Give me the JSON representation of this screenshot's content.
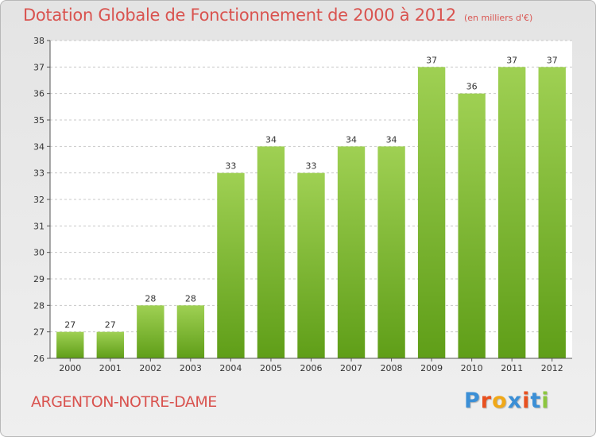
{
  "title": "Dotation Globale de Fonctionnement de 2000 à 2012",
  "unit": "(en milliers d'€)",
  "commune": "ARGENTON-NOTRE-DAME",
  "logo": {
    "letters": [
      "P",
      "r",
      "o",
      "x",
      "i",
      "t",
      "i"
    ],
    "colors": [
      "#3b8fd6",
      "#e8501f",
      "#f0a818",
      "#3b8fd6",
      "#e8501f",
      "#3b8fd6",
      "#8cc63f"
    ]
  },
  "chart_data": {
    "type": "bar",
    "categories": [
      "2000",
      "2001",
      "2002",
      "2003",
      "2004",
      "2005",
      "2006",
      "2007",
      "2008",
      "2009",
      "2010",
      "2011",
      "2012"
    ],
    "values": [
      27,
      27,
      28,
      28,
      33,
      34,
      33,
      34,
      34,
      37,
      36,
      37,
      37
    ],
    "title": "Dotation Globale de Fonctionnement de 2000 à 2012",
    "subtitle": "(en milliers d'€)",
    "xlabel": "",
    "ylabel": "",
    "ylim": [
      26,
      38
    ],
    "yticks": [
      26,
      27,
      28,
      29,
      30,
      31,
      32,
      33,
      34,
      35,
      36,
      37,
      38
    ],
    "grid": true,
    "legend": "none",
    "bar_color_top": "#9fd053",
    "bar_color_bottom": "#5f9e18"
  }
}
